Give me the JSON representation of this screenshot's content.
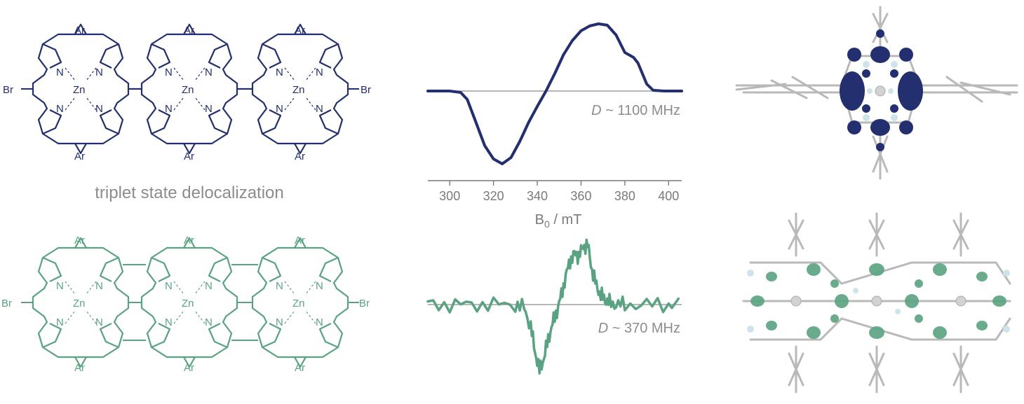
{
  "colors": {
    "navy": "#232f6e",
    "green": "#5aa382",
    "grey": "#8c8c8c",
    "light": "#cfe3ea"
  },
  "caption": "triplet state delocalization",
  "labels": {
    "ar": "Ar",
    "br": "Br",
    "zn": "Zn",
    "n": "N"
  },
  "chart_data": [
    {
      "type": "line",
      "name": "trimer-epr",
      "annotation_d": "D",
      "annotation_value": "~ 1100 MHz",
      "xlabel_main": "B",
      "xlabel_sub": "0",
      "xlabel_unit": " / mT",
      "xticks": [
        300,
        320,
        340,
        360,
        380,
        400
      ],
      "xlim": [
        290,
        406
      ],
      "ylim": [
        -1.1,
        1.0
      ],
      "x": [
        290,
        300,
        305,
        308,
        312,
        316,
        320,
        324,
        328,
        332,
        336,
        340,
        344,
        348,
        352,
        356,
        360,
        364,
        368,
        372,
        376,
        380,
        384,
        386,
        390,
        393,
        398,
        406
      ],
      "y": [
        0.0,
        0.0,
        -0.02,
        -0.12,
        -0.45,
        -0.78,
        -0.97,
        -1.04,
        -0.95,
        -0.72,
        -0.45,
        -0.22,
        0.0,
        0.25,
        0.52,
        0.72,
        0.86,
        0.93,
        0.96,
        0.94,
        0.8,
        0.55,
        0.48,
        0.4,
        0.1,
        0.01,
        0.0,
        0.0
      ]
    },
    {
      "type": "line",
      "name": "fused-trimer-epr",
      "annotation_d": "D",
      "annotation_value": "~ 370 MHz",
      "xlim": [
        290,
        406
      ],
      "ylim": [
        -1.1,
        1.0
      ],
      "x": [
        290,
        300,
        310,
        320,
        330,
        334,
        337,
        339,
        341,
        343,
        345,
        347,
        349,
        351,
        353,
        355,
        357,
        359,
        361,
        363,
        365,
        367,
        369,
        371,
        373,
        376,
        380,
        390,
        400,
        406
      ],
      "y": [
        0.0,
        0.0,
        0.0,
        0.0,
        0.0,
        -0.05,
        -0.35,
        -0.75,
        -1.05,
        -0.85,
        -0.55,
        -0.3,
        -0.1,
        0.15,
        0.45,
        0.7,
        0.8,
        0.78,
        0.92,
        0.95,
        0.55,
        0.3,
        0.15,
        0.08,
        0.03,
        0.0,
        0.0,
        0.0,
        0.0,
        0.0
      ]
    }
  ]
}
